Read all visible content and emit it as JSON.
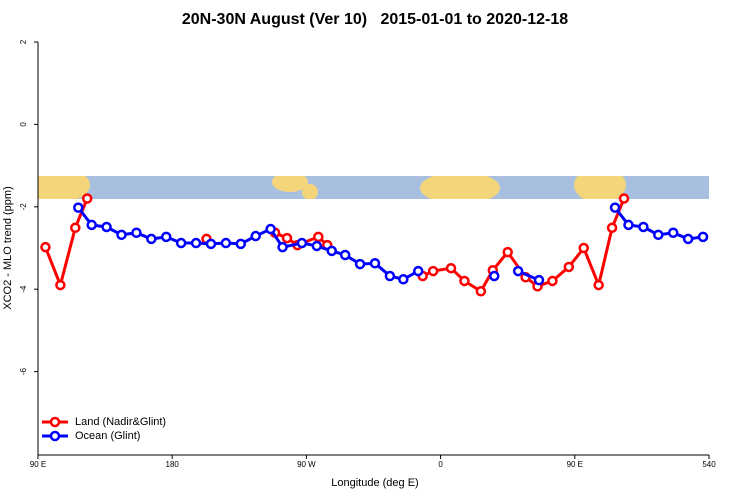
{
  "chart_data": {
    "type": "line",
    "title": "20N-30N August (Ver 10)   2015-01-01 to 2020-12-18",
    "x_label": "Longitude (deg E)",
    "y_label": "XCO2 - MLO trend (ppm)",
    "xlim": [
      90,
      540
    ],
    "xticks": [
      {
        "value": 90,
        "label": "90 E"
      },
      180,
      {
        "value": 270,
        "label": "90 W"
      },
      {
        "value": 360,
        "label": "0"
      },
      {
        "value": 450,
        "label": "90 E"
      },
      540
    ],
    "ylim": [
      -8,
      2
    ],
    "yticks": [
      2,
      0,
      -2,
      -4,
      -6
    ],
    "legend": "bottom-left",
    "series": [
      {
        "name": "Land (Nadir&Glint)",
        "color": "#ff0000",
        "x": [
          95,
          105,
          115,
          123,
          160,
          203,
          226,
          249,
          257,
          264,
          278,
          284,
          316,
          348,
          355,
          367,
          376,
          387,
          395,
          405,
          417,
          425,
          435,
          446,
          456,
          466,
          475,
          483
        ],
        "values": [
          -2.98,
          -3.9,
          -2.51,
          -1.8,
          null,
          -2.78,
          null,
          -2.63,
          -2.76,
          -2.93,
          -2.73,
          -2.93,
          null,
          -3.68,
          -3.56,
          -3.49,
          -3.8,
          -4.05,
          -3.54,
          -3.1,
          -3.71,
          -3.93,
          -3.8,
          -3.46,
          -3.0,
          -3.9,
          -2.51,
          -1.8
        ]
      },
      {
        "name": "Ocean (Glint)",
        "color": "#0000ff",
        "x": [
          117,
          126,
          136,
          146,
          156,
          166,
          176,
          186,
          196,
          206,
          216,
          226,
          236,
          246,
          254,
          267,
          277,
          287,
          296,
          306,
          316,
          326,
          335,
          345,
          370,
          396,
          404,
          412,
          426,
          450,
          477,
          486,
          496,
          506,
          516,
          526,
          536
        ],
        "values": [
          -2.02,
          -2.44,
          -2.49,
          -2.68,
          -2.63,
          -2.78,
          -2.73,
          -2.88,
          -2.88,
          -2.9,
          -2.88,
          -2.9,
          -2.71,
          -2.54,
          -2.98,
          -2.88,
          -2.95,
          -3.07,
          -3.17,
          -3.39,
          -3.37,
          -3.68,
          -3.76,
          -3.56,
          null,
          -3.68,
          null,
          -3.56,
          -3.78,
          null,
          -2.02,
          -2.44,
          -2.49,
          -2.68,
          -2.63,
          -2.78,
          -2.73
        ]
      }
    ]
  }
}
